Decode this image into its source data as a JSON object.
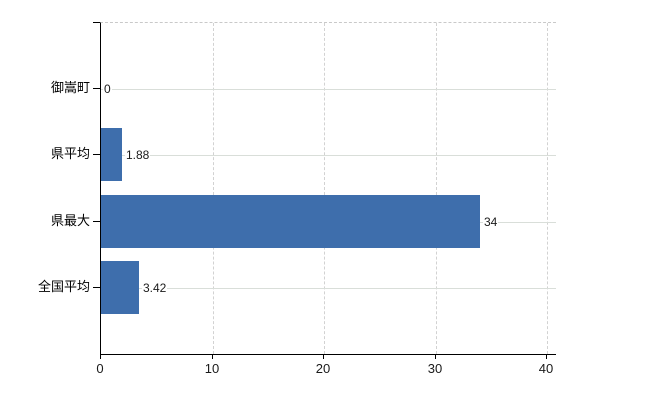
{
  "chart_data": {
    "type": "bar",
    "orientation": "horizontal",
    "title": "",
    "xlabel": "",
    "ylabel": "",
    "categories": [
      "御嵩町",
      "県平均",
      "県最大",
      "全国平均"
    ],
    "values": [
      0,
      1.88,
      34,
      3.42
    ],
    "value_labels": [
      "0",
      "1.88",
      "34",
      "3.42"
    ],
    "xlim": [
      0,
      40
    ],
    "x_ticks": [
      0,
      10,
      20,
      30,
      40
    ],
    "x_tick_labels": [
      "0",
      "10",
      "20",
      "30",
      "40"
    ],
    "grid": true,
    "legend": false,
    "colors": {
      "bar": "#3e6eac",
      "axis": "#000000",
      "gridline_h": "#d9ded9",
      "gridline_v": "#d2d2d2",
      "top_border": "#c9c9c9",
      "text": "#1a1a1a",
      "background": "#ffffff"
    }
  }
}
